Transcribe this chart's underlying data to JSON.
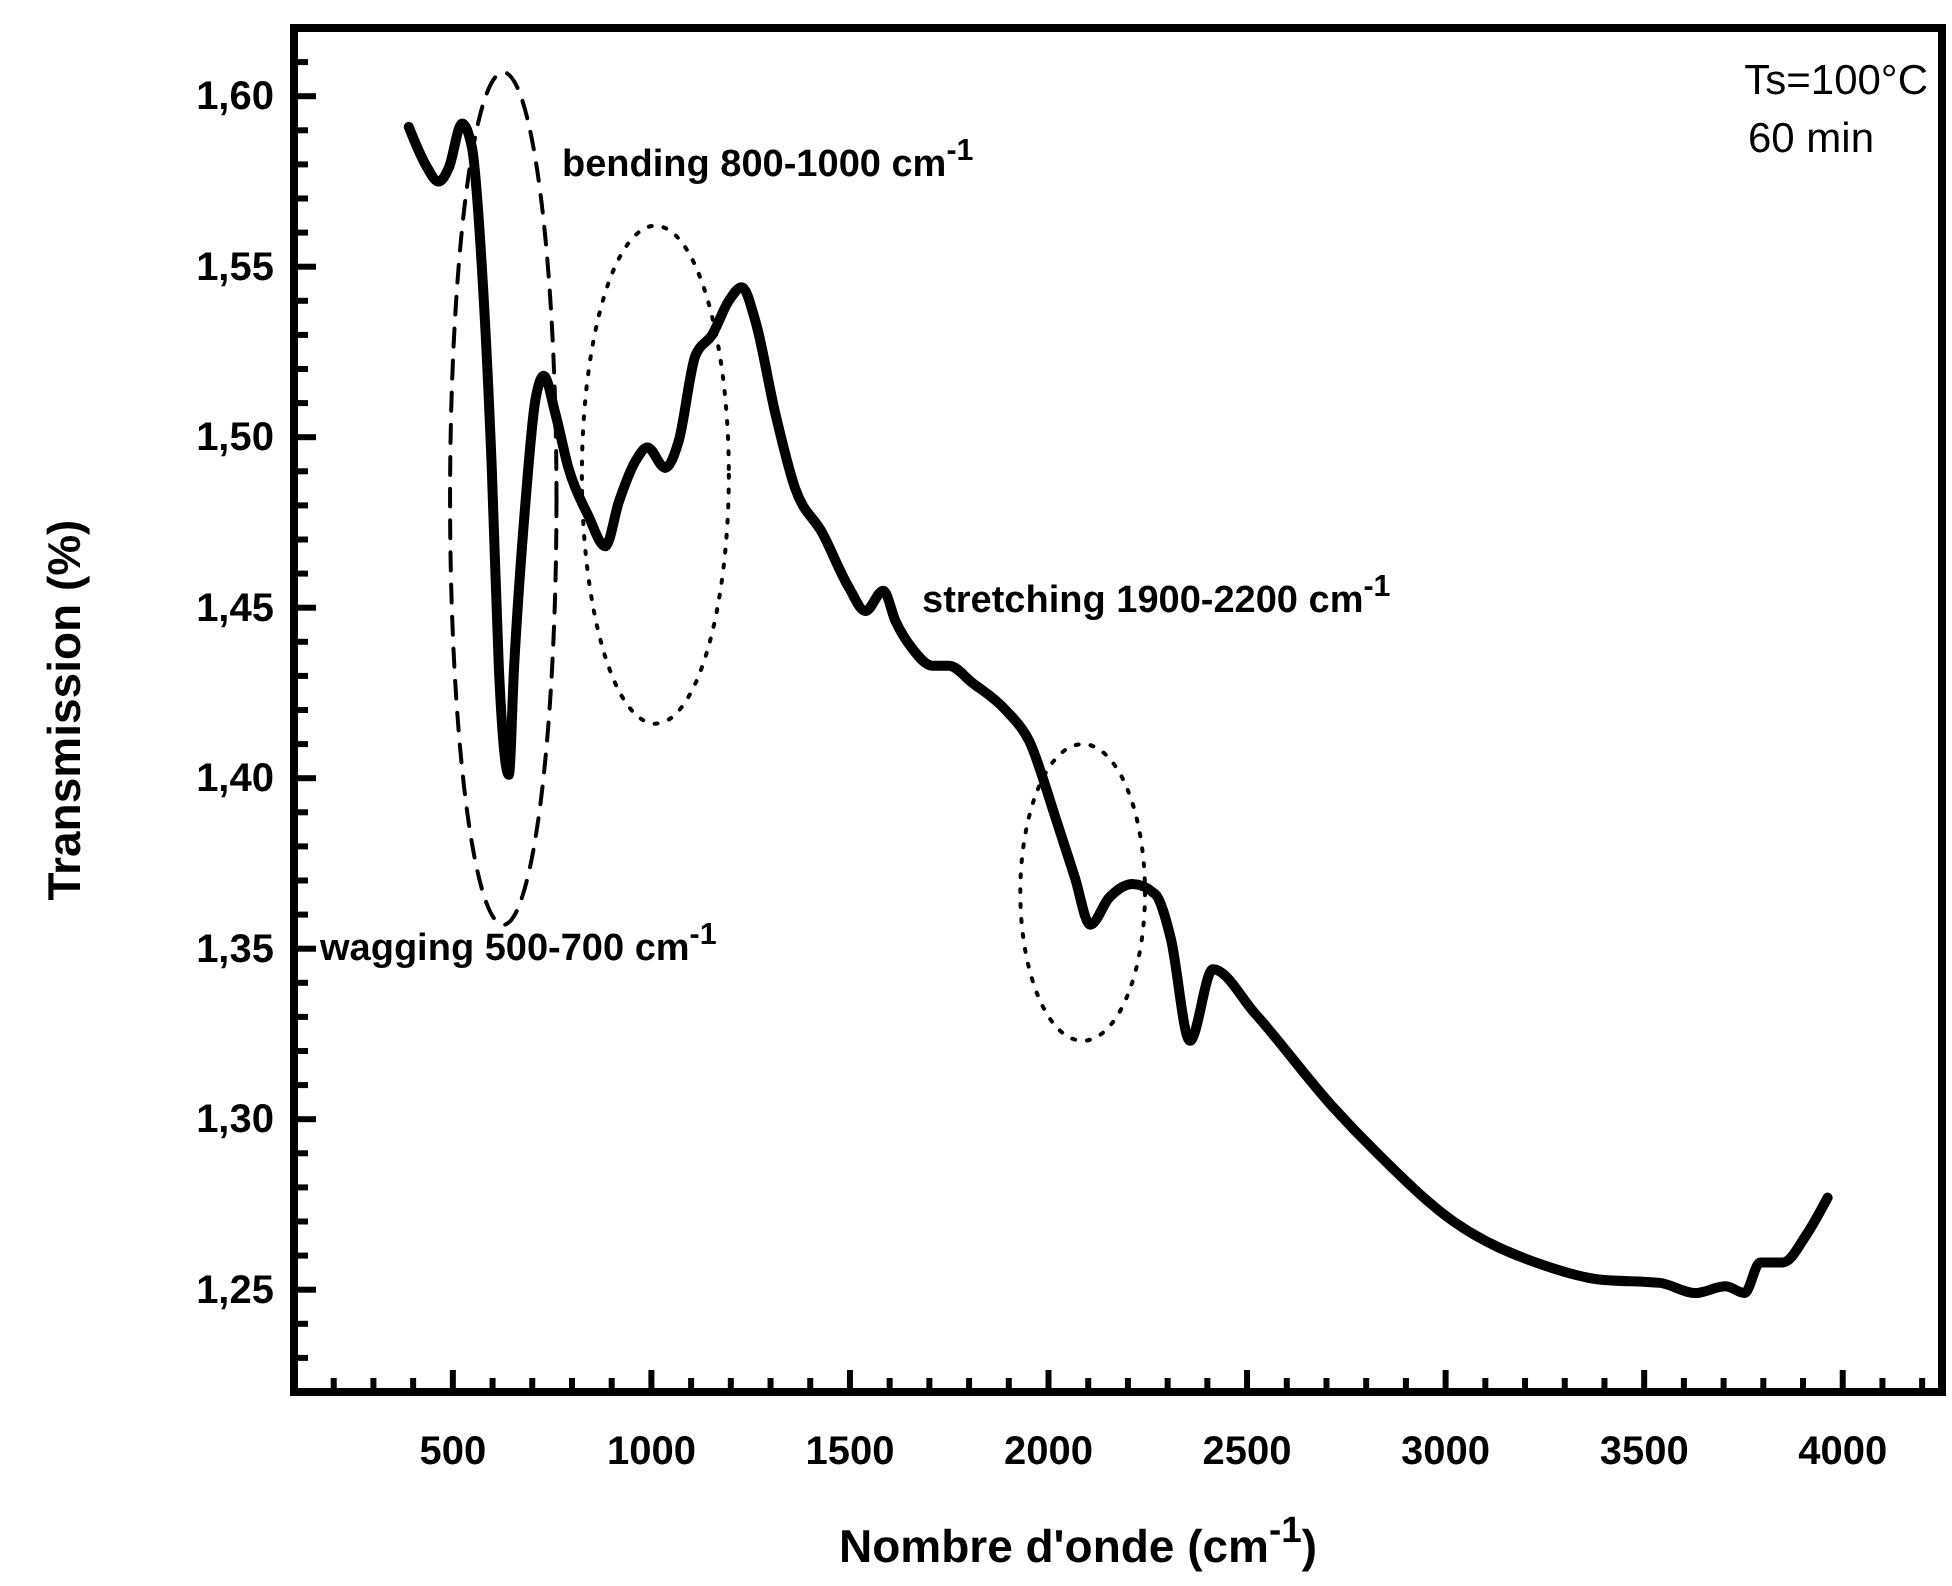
{
  "chart_data": {
    "type": "line",
    "xlabel": "Nombre d'onde (cm$^{-1}$)",
    "ylabel": "Transmission (%)",
    "annotations": [
      "bending 800-1000 cm$^{-1}$",
      "wagging 500-700 cm$^{-1}$",
      "stretching 1900-2200 cm$^{-1}$",
      "Ts=100°C",
      "60 min"
    ],
    "xlim": [
      100,
      4250
    ],
    "ylim": [
      1.22,
      1.62
    ],
    "xticks": [
      {
        "value": 100,
        "label": null
      },
      {
        "value": 200,
        "label": null
      },
      {
        "value": 300,
        "label": null
      },
      {
        "value": 400,
        "label": null
      },
      500,
      {
        "value": 600,
        "label": null
      },
      {
        "value": 700,
        "label": null
      },
      {
        "value": 800,
        "label": null
      },
      {
        "value": 900,
        "label": null
      },
      1000,
      {
        "value": 1100,
        "label": null
      },
      {
        "value": 1200,
        "label": null
      },
      {
        "value": 1300,
        "label": null
      },
      {
        "value": 1400,
        "label": null
      },
      1500,
      {
        "value": 1600,
        "label": null
      },
      {
        "value": 1700,
        "label": null
      },
      {
        "value": 1800,
        "label": null
      },
      {
        "value": 1900,
        "label": null
      },
      2000,
      {
        "value": 2100,
        "label": null
      },
      {
        "value": 2200,
        "label": null
      },
      {
        "value": 2300,
        "label": null
      },
      {
        "value": 2400,
        "label": null
      },
      2500,
      {
        "value": 2600,
        "label": null
      },
      {
        "value": 2700,
        "label": null
      },
      {
        "value": 2800,
        "label": null
      },
      {
        "value": 2900,
        "label": null
      },
      3000,
      {
        "value": 3100,
        "label": null
      },
      {
        "value": 3200,
        "label": null
      },
      {
        "value": 3300,
        "label": null
      },
      {
        "value": 3400,
        "label": null
      },
      3500,
      {
        "value": 3600,
        "label": null
      },
      {
        "value": 3700,
        "label": null
      },
      {
        "value": 3800,
        "label": null
      },
      {
        "value": 3900,
        "label": null
      },
      4000,
      {
        "value": 4100,
        "label": null
      },
      {
        "value": 4200,
        "label": null
      }
    ],
    "yticks": [
      {
        "value": 1.23,
        "label": null
      },
      {
        "value": 1.24,
        "label": null
      },
      {
        "value": 1.25,
        "label": "1,25"
      },
      {
        "value": 1.26,
        "label": null
      },
      {
        "value": 1.27,
        "label": null
      },
      {
        "value": 1.28,
        "label": null
      },
      {
        "value": 1.29,
        "label": null
      },
      {
        "value": 1.3,
        "label": "1,30"
      },
      {
        "value": 1.31,
        "label": null
      },
      {
        "value": 1.32,
        "label": null
      },
      {
        "value": 1.33,
        "label": null
      },
      {
        "value": 1.34,
        "label": null
      },
      {
        "value": 1.35,
        "label": "1,35"
      },
      {
        "value": 1.36,
        "label": null
      },
      {
        "value": 1.37,
        "label": null
      },
      {
        "value": 1.38,
        "label": null
      },
      {
        "value": 1.39,
        "label": null
      },
      {
        "value": 1.4,
        "label": "1,40"
      },
      {
        "value": 1.41,
        "label": null
      },
      {
        "value": 1.42,
        "label": null
      },
      {
        "value": 1.43,
        "label": null
      },
      {
        "value": 1.44,
        "label": null
      },
      {
        "value": 1.45,
        "label": "1,45"
      },
      {
        "value": 1.46,
        "label": null
      },
      {
        "value": 1.47,
        "label": null
      },
      {
        "value": 1.48,
        "label": null
      },
      {
        "value": 1.49,
        "label": null
      },
      {
        "value": 1.5,
        "label": "1,50"
      },
      {
        "value": 1.51,
        "label": null
      },
      {
        "value": 1.52,
        "label": null
      },
      {
        "value": 1.53,
        "label": null
      },
      {
        "value": 1.54,
        "label": null
      },
      {
        "value": 1.55,
        "label": "1,55"
      },
      {
        "value": 1.56,
        "label": null
      },
      {
        "value": 1.57,
        "label": null
      },
      {
        "value": 1.58,
        "label": null
      },
      {
        "value": 1.59,
        "label": null
      },
      {
        "value": 1.6,
        "label": "1,60"
      },
      {
        "value": 1.61,
        "label": null
      }
    ],
    "grid": false,
    "line_style": "solid",
    "x": [
      389,
      431,
      464,
      490,
      523,
      548,
      573,
      598,
      616,
      641,
      654,
      683,
      708,
      729,
      758,
      791,
      841,
      884,
      918,
      960,
      990,
      1035,
      1069,
      1111,
      1153,
      1195,
      1228,
      1262,
      1312,
      1362,
      1430,
      1497,
      1539,
      1584,
      1615,
      1657,
      1707,
      1749,
      1808,
      1892,
      1951,
      2016,
      2066,
      2105,
      2153,
      2211,
      2269,
      2308,
      2356,
      2414,
      2520,
      2713,
      2828,
      3020,
      3251,
      3386,
      3540,
      3628,
      3705,
      3753,
      3792,
      3850,
      3908,
      3962
    ],
    "series": [
      {
        "color": "#000000",
        "values": [
          1.591,
          1.58,
          1.575,
          1.579,
          1.592,
          1.585,
          1.55,
          1.491,
          1.432,
          1.401,
          1.432,
          1.481,
          1.511,
          1.518,
          1.507,
          1.491,
          1.477,
          1.468,
          1.481,
          1.493,
          1.497,
          1.491,
          1.499,
          1.524,
          1.53,
          1.54,
          1.544,
          1.534,
          1.507,
          1.485,
          1.472,
          1.456,
          1.449,
          1.455,
          1.446,
          1.438,
          1.433,
          1.433,
          1.428,
          1.42,
          1.411,
          1.389,
          1.371,
          1.357,
          1.365,
          1.369,
          1.366,
          1.353,
          1.323,
          1.344,
          1.331,
          1.304,
          1.29,
          1.27,
          1.257,
          1.253,
          1.252,
          1.249,
          1.251,
          1.249,
          1.258,
          1.258,
          1.266,
          1.277
        ]
      }
    ]
  }
}
